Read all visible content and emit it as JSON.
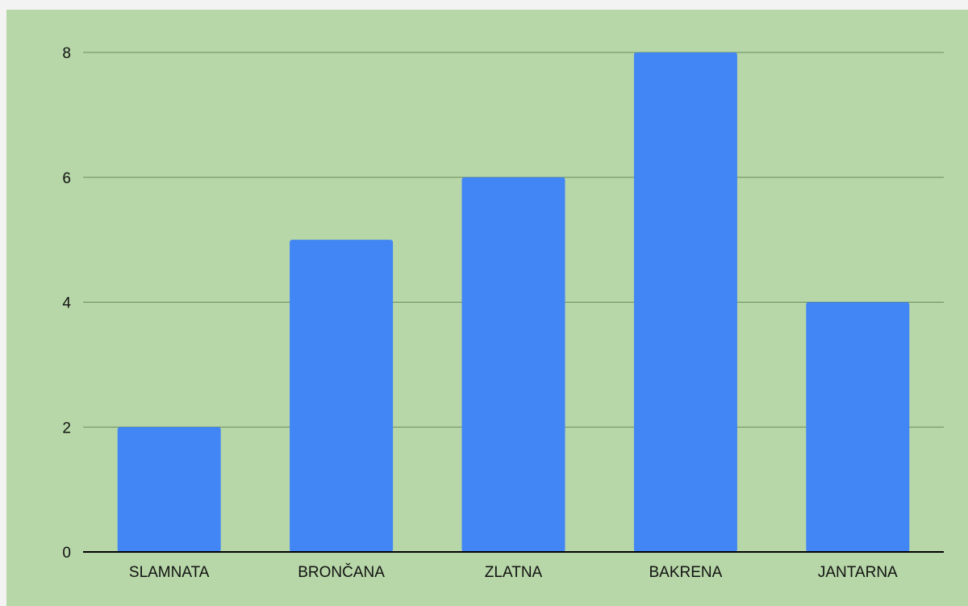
{
  "chart_data": {
    "type": "bar",
    "categories": [
      "SLAMNATA",
      "BRONČANA",
      "ZLATNA",
      "BAKRENA",
      "JANTARNA"
    ],
    "values": [
      2,
      5,
      6,
      8,
      4
    ],
    "title": "",
    "xlabel": "",
    "ylabel": "",
    "ylim": [
      0,
      8
    ],
    "yticks": [
      0,
      2,
      4,
      6,
      8
    ],
    "grid": true,
    "legend": "none",
    "colors": {
      "background": "#b7d7a8",
      "bar": "#4285f4",
      "gridline": "#6a8c5c",
      "axis": "#000000"
    }
  }
}
